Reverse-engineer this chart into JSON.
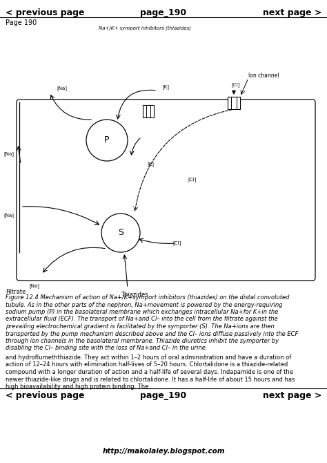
{
  "bg_color": "#ffffff",
  "header_left": "< previous page",
  "header_center": "page_190",
  "header_right": "next page >",
  "footer_left": "< previous page",
  "footer_center": "page_190",
  "footer_right": "next page >",
  "page_label": "Page 190",
  "diagram_title": "Na+/K+ symport inhibitors (thiazides)",
  "filtrate_label": "Filtrate",
  "thiazides_label": "Thiazides",
  "ion_channel_label": "Ion channel",
  "figure_caption_italic": "Figure 12.4 Mechanism of action of Na+/K+symport inhibitors (thiazides) on the distal convoluted\ntubule. As in the other parts of the nephron, Na+movement is powered by the energy-requiring\nsodium pump (P) in the basolateral membrane which exchanges intracellular Na+for K+in the\nextracellular fluid (ECF). The transport of Na+and Cl– into the cell from the filtrate against the\nprevailing electrochemical gradient is facilitated by the symporter (S). The Na+ions are then\ntransported by the pump mechanism described above and the Cl– ions diffuse passively into the ECF\nthrough ion channels in the basolateral membrane. Thiazide diuretics inhibit the symporter by\ndisabling the Cl– binding site with the loss of Na+and Cl– in the urine.",
  "body_text": "and hydroflumeththiazide. They act within 1–2 hours of oral administration and have a duration of\naction of 12–24 hours with elimination half-lives of 5–20 hours. Chlortalidone is a thiazide-related\ncompound with a longer duration of action and a half-life of several days. Indapamide is one of the\nnewer thiazide-like drugs and is related to chlortalidone. It has a half-life of about 15 hours and has\nhigh bioavailability and high protein binding. The",
  "website": "http://makolaiey.blogspot.com"
}
